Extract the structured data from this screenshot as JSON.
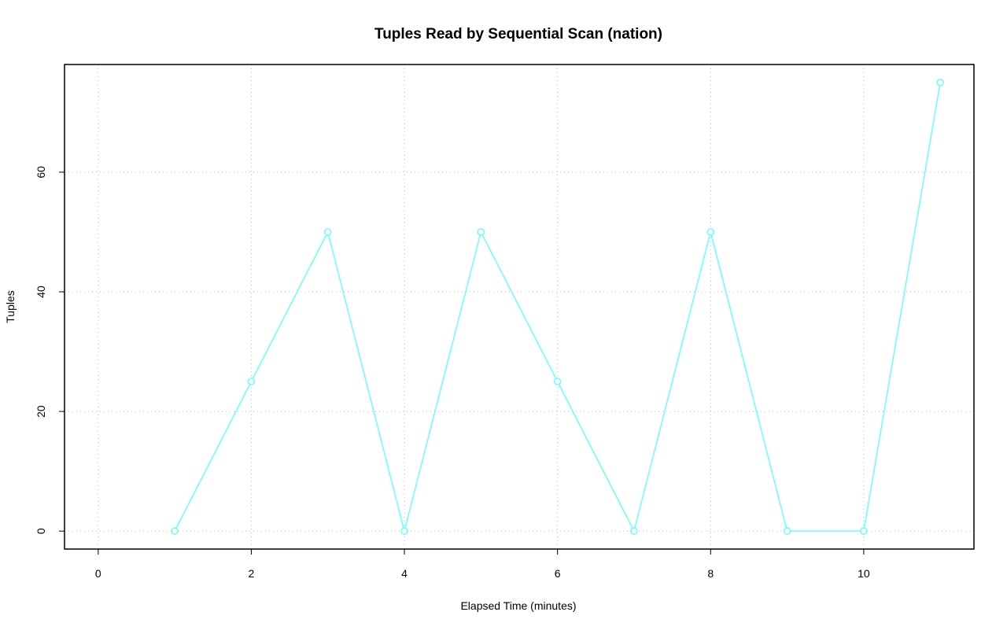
{
  "chart_data": {
    "type": "line",
    "title": "Tuples Read by Sequential Scan (nation)",
    "x_label": "Elapsed Time (minutes)",
    "y_label": "Tuples",
    "x": [
      1,
      2,
      3,
      4,
      5,
      6,
      7,
      8,
      9,
      10,
      11
    ],
    "series": [
      {
        "color": "#66ffff",
        "values": [
          0,
          25,
          50,
          0,
          50,
          25,
          0,
          50,
          0,
          0,
          75
        ]
      }
    ],
    "xlim": [
      -0.44,
      11.44
    ],
    "xticks": [
      0,
      2,
      4,
      6,
      8,
      10
    ],
    "ylim": [
      -3,
      78
    ],
    "yticks": [
      0,
      20,
      40,
      60
    ],
    "grid": true
  }
}
